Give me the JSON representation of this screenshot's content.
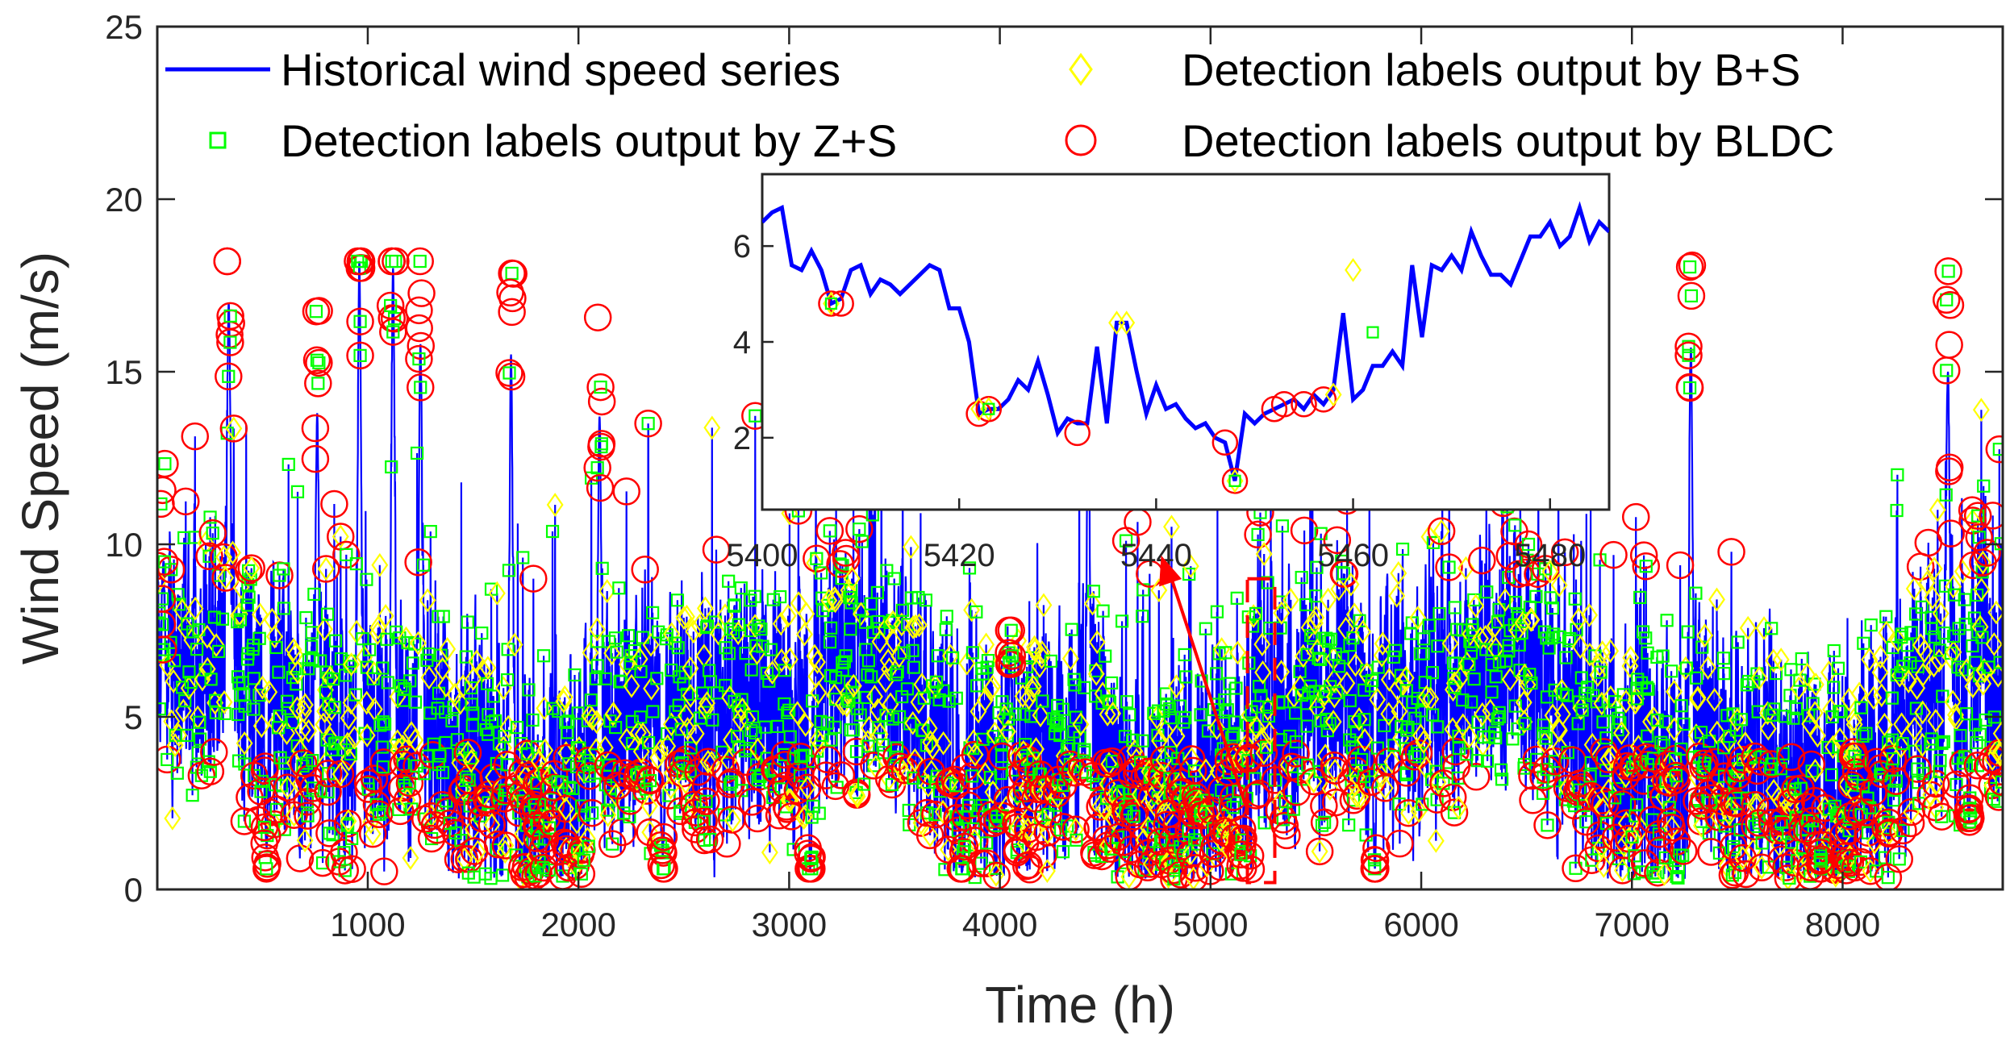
{
  "chart_data": {
    "type": "line",
    "xlabel": "Time (h)",
    "ylabel": "Wind Speed (m/s)",
    "xlim": [
      1,
      8760
    ],
    "ylim": [
      0,
      25
    ],
    "x_ticks": [
      1000,
      2000,
      3000,
      4000,
      5000,
      6000,
      7000,
      8000
    ],
    "y_ticks": [
      0,
      5,
      10,
      15,
      20,
      25
    ],
    "grid": false,
    "colors": {
      "series": "#0000ff",
      "bs": "#ffff00",
      "zs": "#00ff00",
      "bldc": "#ff0000",
      "arrow": "#ff0000",
      "axes": "#262626"
    },
    "legend": {
      "placement": "top",
      "entries": [
        {
          "key": "series",
          "label": "Historical wind speed series",
          "marker": "line"
        },
        {
          "key": "zs",
          "label": "Detection labels output by Z+S",
          "marker": "square"
        },
        {
          "key": "bs",
          "label": "Detection labels output by B+S",
          "marker": "diamond"
        },
        {
          "key": "bldc",
          "label": "Detection labels output by BLDC",
          "marker": "circle"
        }
      ]
    },
    "series": {
      "name": "Historical wind speed series",
      "peaks": [
        {
          "t": 30,
          "v": 9.5
        },
        {
          "t": 340,
          "v": 17.0
        },
        {
          "t": 520,
          "v": 1.2
        },
        {
          "t": 760,
          "v": 13.8
        },
        {
          "t": 960,
          "v": 18.2
        },
        {
          "t": 1120,
          "v": 18.0
        },
        {
          "t": 1250,
          "v": 15.8
        },
        {
          "t": 1680,
          "v": 15.5
        },
        {
          "t": 2100,
          "v": 13.7
        },
        {
          "t": 2400,
          "v": 1.0
        },
        {
          "t": 3100,
          "v": 0.6
        },
        {
          "t": 3820,
          "v": 0.5
        },
        {
          "t": 4050,
          "v": 7.0
        },
        {
          "t": 4420,
          "v": 14.0
        },
        {
          "t": 5150,
          "v": 1.0
        },
        {
          "t": 5780,
          "v": 0.6
        },
        {
          "t": 7280,
          "v": 15.7
        },
        {
          "t": 7900,
          "v": 0.9
        },
        {
          "t": 8500,
          "v": 15.0
        },
        {
          "t": 8600,
          "v": 2.0
        }
      ]
    },
    "highlight": {
      "x_range": [
        5400,
        5480
      ],
      "y_range": [
        0.2,
        9.0
      ]
    },
    "inset": {
      "xlim": [
        5400,
        5486
      ],
      "ylim": [
        0.5,
        7.5
      ],
      "x_ticks": [
        5400,
        5420,
        5440,
        5460,
        5480
      ],
      "y_ticks": [
        2,
        4,
        6
      ],
      "x": [
        5400,
        5401,
        5402,
        5403,
        5404,
        5405,
        5406,
        5407,
        5408,
        5409,
        5410,
        5411,
        5412,
        5413,
        5414,
        5415,
        5416,
        5417,
        5418,
        5419,
        5420,
        5421,
        5422,
        5423,
        5424,
        5425,
        5426,
        5427,
        5428,
        5429,
        5430,
        5431,
        5432,
        5433,
        5434,
        5435,
        5436,
        5437,
        5438,
        5439,
        5440,
        5441,
        5442,
        5443,
        5444,
        5445,
        5446,
        5447,
        5448,
        5449,
        5450,
        5451,
        5452,
        5453,
        5454,
        5455,
        5456,
        5457,
        5458,
        5459,
        5460,
        5461,
        5462,
        5463,
        5464,
        5465,
        5466,
        5467,
        5468,
        5469,
        5470,
        5471,
        5472,
        5473,
        5474,
        5475,
        5476,
        5477,
        5478,
        5479,
        5480,
        5481,
        5482,
        5483,
        5484,
        5485,
        5486
      ],
      "y": [
        6.5,
        6.7,
        6.8,
        5.6,
        5.5,
        5.9,
        5.5,
        4.8,
        4.9,
        5.5,
        5.6,
        5.0,
        5.3,
        5.2,
        5.0,
        5.2,
        5.4,
        5.6,
        5.5,
        4.7,
        4.7,
        4.0,
        2.5,
        2.6,
        2.6,
        2.8,
        3.2,
        3.0,
        3.6,
        2.9,
        2.1,
        2.4,
        2.3,
        2.3,
        3.9,
        2.3,
        4.4,
        4.4,
        3.4,
        2.5,
        3.1,
        2.6,
        2.7,
        2.4,
        2.2,
        2.3,
        2.0,
        1.9,
        1.1,
        2.5,
        2.3,
        2.5,
        2.6,
        2.7,
        2.8,
        2.6,
        2.9,
        2.7,
        3.0,
        4.6,
        2.8,
        3.0,
        3.5,
        3.5,
        3.8,
        3.5,
        5.6,
        4.1,
        5.6,
        5.5,
        5.8,
        5.5,
        6.3,
        5.8,
        5.4,
        5.4,
        5.2,
        5.7,
        6.2,
        6.2,
        6.5,
        6.0,
        6.2,
        6.8,
        6.1,
        6.5,
        6.3
      ],
      "bldc": [
        {
          "x": 5407,
          "y": 4.8
        },
        {
          "x": 5408,
          "y": 4.8
        },
        {
          "x": 5422,
          "y": 2.5
        },
        {
          "x": 5423,
          "y": 2.6
        },
        {
          "x": 5432,
          "y": 2.1
        },
        {
          "x": 5447,
          "y": 1.9
        },
        {
          "x": 5448,
          "y": 1.1
        },
        {
          "x": 5452,
          "y": 2.6
        },
        {
          "x": 5453,
          "y": 2.7
        },
        {
          "x": 5455,
          "y": 2.7
        },
        {
          "x": 5457,
          "y": 2.8
        }
      ],
      "bs": [
        {
          "x": 5407,
          "y": 4.8
        },
        {
          "x": 5422,
          "y": 2.6
        },
        {
          "x": 5423,
          "y": 2.6
        },
        {
          "x": 5436,
          "y": 4.4
        },
        {
          "x": 5437,
          "y": 4.4
        },
        {
          "x": 5448,
          "y": 1.1
        },
        {
          "x": 5458,
          "y": 2.9
        },
        {
          "x": 5460,
          "y": 5.5
        }
      ],
      "zs": [
        {
          "x": 5407,
          "y": 4.8
        },
        {
          "x": 5423,
          "y": 2.6
        },
        {
          "x": 5448,
          "y": 1.1
        },
        {
          "x": 5462,
          "y": 4.2
        }
      ]
    }
  }
}
